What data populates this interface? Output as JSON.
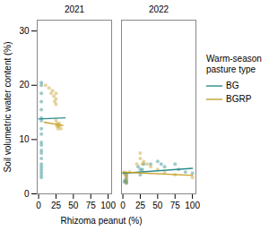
{
  "chart_data": {
    "type": "scatter",
    "xlabel": "Rhizoma peanut (%)",
    "ylabel": "Soil volumetric water content (%)",
    "legend_title": "Warm-season\npasture type",
    "legend": "right",
    "xlim": [
      -2,
      105
    ],
    "ylim": [
      0,
      32
    ],
    "xticks": [
      0,
      25,
      50,
      75,
      100
    ],
    "yticks": [
      0,
      10,
      20,
      30
    ],
    "facets": [
      {
        "title": "2021",
        "series": [
          {
            "name": "BG",
            "color": "#2a8a8a",
            "x": [
              4,
              4,
              4,
              4,
              4,
              4,
              4,
              4,
              4,
              4,
              4,
              4,
              4,
              4,
              4,
              4,
              4,
              4,
              4,
              4
            ],
            "values": [
              20.5,
              20.0,
              18.5,
              17.0,
              15.5,
              14.0,
              13.5,
              12.0,
              11.0,
              9.5,
              9.0,
              8.0,
              7.5,
              6.5,
              5.5,
              5.0,
              4.5,
              4.0,
              3.5,
              3.0
            ],
            "fit": {
              "x": [
                0,
                38
              ],
              "values": [
                13.8,
                14.0
              ]
            }
          },
          {
            "name": "BGRP",
            "color": "#C8A028",
            "x": [
              10,
              15,
              18,
              20,
              22,
              23,
              25,
              25,
              25,
              25,
              26,
              27,
              28,
              28,
              30,
              30,
              32
            ],
            "values": [
              20.0,
              19.5,
              18.5,
              19.0,
              18.0,
              17.0,
              18.5,
              17.5,
              16.5,
              13.5,
              12.5,
              13.0,
              12.0,
              12.5,
              12.5,
              13.0,
              12.0
            ],
            "fit": {
              "x": [
                8,
                35
              ],
              "values": [
                13.2,
                12.6
              ]
            }
          }
        ]
      },
      {
        "title": "2022",
        "series": [
          {
            "name": "BG",
            "color": "#2a8a8a",
            "x": [
              2,
              3,
              5,
              5,
              5,
              5,
              5,
              22,
              25,
              25,
              28,
              30,
              40,
              50,
              55,
              60,
              75,
              80,
              90,
              100
            ],
            "values": [
              2.2,
              2.5,
              3.5,
              3.0,
              2.5,
              2.2,
              2.0,
              5.0,
              4.5,
              3.5,
              4.5,
              5.5,
              5.5,
              6.0,
              5.5,
              5.0,
              5.5,
              4.5,
              4.0,
              3.8
            ],
            "fit": {
              "x": [
                0,
                100
              ],
              "values": [
                3.8,
                4.7
              ]
            }
          },
          {
            "name": "BGRP",
            "color": "#C8A028",
            "x": [
              2,
              3,
              5,
              5,
              5,
              5,
              10,
              20,
              25,
              25,
              28,
              30,
              35,
              40,
              50,
              60,
              75,
              100
            ],
            "values": [
              4.0,
              3.5,
              3.5,
              3.0,
              2.5,
              2.0,
              4.0,
              5.5,
              7.5,
              6.5,
              5.5,
              6.0,
              5.5,
              5.0,
              4.5,
              4.0,
              3.5,
              3.0
            ],
            "fit": {
              "x": [
                0,
                100
              ],
              "values": [
                4.0,
                3.4
              ]
            }
          }
        ]
      }
    ]
  }
}
